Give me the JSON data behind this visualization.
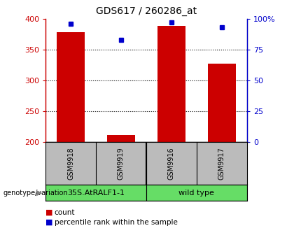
{
  "title": "GDS617 / 260286_at",
  "samples": [
    "GSM9918",
    "GSM9919",
    "GSM9916",
    "GSM9917"
  ],
  "counts": [
    378,
    212,
    388,
    327
  ],
  "percentiles": [
    96,
    83,
    97,
    93
  ],
  "left_ylim": [
    200,
    400
  ],
  "right_ylim": [
    0,
    100
  ],
  "left_yticks": [
    200,
    250,
    300,
    350,
    400
  ],
  "right_yticks": [
    0,
    25,
    50,
    75,
    100
  ],
  "right_yticklabels": [
    "0",
    "25",
    "50",
    "75",
    "100%"
  ],
  "grid_lines": [
    250,
    300,
    350
  ],
  "groups": [
    {
      "label": "35S.AtRALF1-1",
      "samples": [
        0,
        1
      ],
      "color": "#66DD66"
    },
    {
      "label": "wild type",
      "samples": [
        2,
        3
      ],
      "color": "#66DD66"
    }
  ],
  "bar_color": "#CC0000",
  "dot_color": "#0000CC",
  "bar_width": 0.55,
  "sample_box_color": "#BBBBBB",
  "legend_label_count": "count",
  "legend_label_percentile": "percentile rank within the sample",
  "genotype_label": "genotype/variation",
  "left_axis_color": "#CC0000",
  "right_axis_color": "#0000CC",
  "bg_color": "#FFFFFF"
}
